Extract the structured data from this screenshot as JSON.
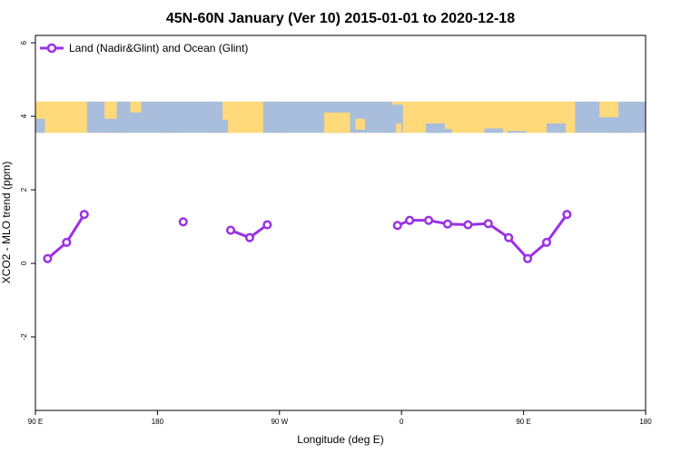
{
  "chart_data": {
    "type": "line",
    "title": "45N-60N January (Ver 10)   2015-01-01 to 2020-12-18",
    "xlabel": "Longitude (deg E)",
    "ylabel": "XCO2 - MLO trend (ppm)",
    "xlim": [
      90,
      540
    ],
    "ylim": [
      -4,
      6.2
    ],
    "x_ticks": [
      90,
      180,
      270,
      360,
      450,
      540
    ],
    "x_tick_labels": [
      "90 E",
      "180",
      "90 W",
      "0",
      "90 E",
      "180"
    ],
    "y_ticks": [
      -2,
      0,
      2,
      4,
      6
    ],
    "y_tick_labels": [
      "-2",
      "0",
      "2",
      "4",
      "6"
    ],
    "map_band": {
      "y_range": [
        3.55,
        4.4
      ],
      "land_color": "#FFD97A",
      "ocean_color": "#A8BEDC"
    },
    "legend": {
      "position": "top-left"
    },
    "series": [
      {
        "name": "Land (Nadir&Glint) and Ocean (Glint)",
        "color": "#9B30E6",
        "segments": [
          [
            [
              99,
              0.13
            ],
            [
              113,
              0.57
            ],
            [
              126,
              1.33
            ]
          ],
          [
            [
              199,
              1.13
            ]
          ],
          [
            [
              234,
              0.9
            ],
            [
              248,
              0.7
            ],
            [
              261,
              1.05
            ]
          ],
          [
            [
              357,
              1.03
            ],
            [
              366,
              1.17
            ],
            [
              380,
              1.17
            ],
            [
              394,
              1.07
            ],
            [
              409,
              1.05
            ],
            [
              424,
              1.08
            ],
            [
              439,
              0.7
            ],
            [
              453,
              0.13
            ],
            [
              467,
              0.57
            ],
            [
              482,
              1.33
            ]
          ]
        ]
      }
    ]
  }
}
